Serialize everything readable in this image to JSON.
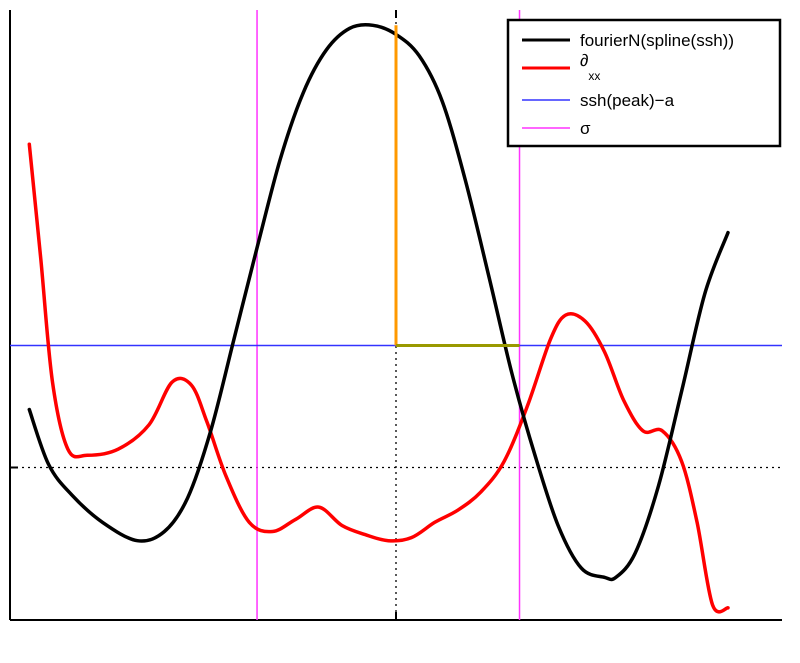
{
  "chart_data": {
    "type": "line",
    "title": "",
    "xlabel": "",
    "ylabel": "",
    "xlim": [
      0,
      10
    ],
    "ylim": [
      0,
      10
    ],
    "grid": false,
    "legend_position": "top-right",
    "reference_lines": {
      "vertical_dotted_x": 5,
      "horizontal_dotted_y": 2.5
    },
    "series": [
      {
        "name": "fourierN(spline(ssh))",
        "color": "#000000",
        "x": [
          0.25,
          0.5,
          0.8,
          1.2,
          1.65,
          2.0,
          2.3,
          2.6,
          2.9,
          3.2,
          3.5,
          3.8,
          4.1,
          4.4,
          4.7,
          5.0,
          5.3,
          5.6,
          5.9,
          6.2,
          6.5,
          6.8,
          7.1,
          7.4,
          7.7,
          7.85,
          8.1,
          8.4,
          8.7,
          9.0,
          9.3
        ],
        "y": [
          3.45,
          2.55,
          2.05,
          1.6,
          1.3,
          1.45,
          2.0,
          3.1,
          4.6,
          6.1,
          7.55,
          8.65,
          9.35,
          9.7,
          9.75,
          9.6,
          9.25,
          8.5,
          7.2,
          5.65,
          4.05,
          2.7,
          1.55,
          0.85,
          0.7,
          0.7,
          1.1,
          2.2,
          3.75,
          5.35,
          6.35
        ]
      },
      {
        "name": "∂xx",
        "color": "#ff0000",
        "x": [
          0.25,
          0.4,
          0.55,
          0.75,
          1.0,
          1.4,
          1.8,
          2.1,
          2.35,
          2.55,
          2.8,
          3.1,
          3.4,
          3.7,
          4.0,
          4.3,
          4.6,
          4.9,
          5.2,
          5.5,
          5.8,
          6.1,
          6.4,
          6.7,
          7.0,
          7.2,
          7.45,
          7.7,
          7.95,
          8.2,
          8.45,
          8.7,
          8.9,
          9.1,
          9.3
        ],
        "y": [
          7.8,
          5.9,
          3.9,
          2.8,
          2.7,
          2.8,
          3.2,
          3.9,
          3.85,
          3.25,
          2.35,
          1.6,
          1.45,
          1.65,
          1.85,
          1.55,
          1.4,
          1.3,
          1.35,
          1.6,
          1.8,
          2.1,
          2.6,
          3.5,
          4.6,
          5.0,
          4.9,
          4.4,
          3.6,
          3.1,
          3.1,
          2.6,
          1.6,
          0.25,
          0.2
        ]
      },
      {
        "name": "ssh(peak)−a",
        "color": "#3333ff",
        "y_constant": 4.5
      },
      {
        "name": "σ",
        "color": "#ff33ff",
        "x_lines": [
          3.2,
          6.6
        ]
      }
    ],
    "annotations": [
      {
        "kind": "vertical-segment",
        "color": "#ff9900",
        "x": 5.0,
        "y_from": 4.5,
        "y_to": 9.75
      },
      {
        "kind": "horizontal-segment",
        "color": "#999900",
        "y": 4.5,
        "x_from": 5.0,
        "x_to": 6.6
      }
    ]
  }
}
